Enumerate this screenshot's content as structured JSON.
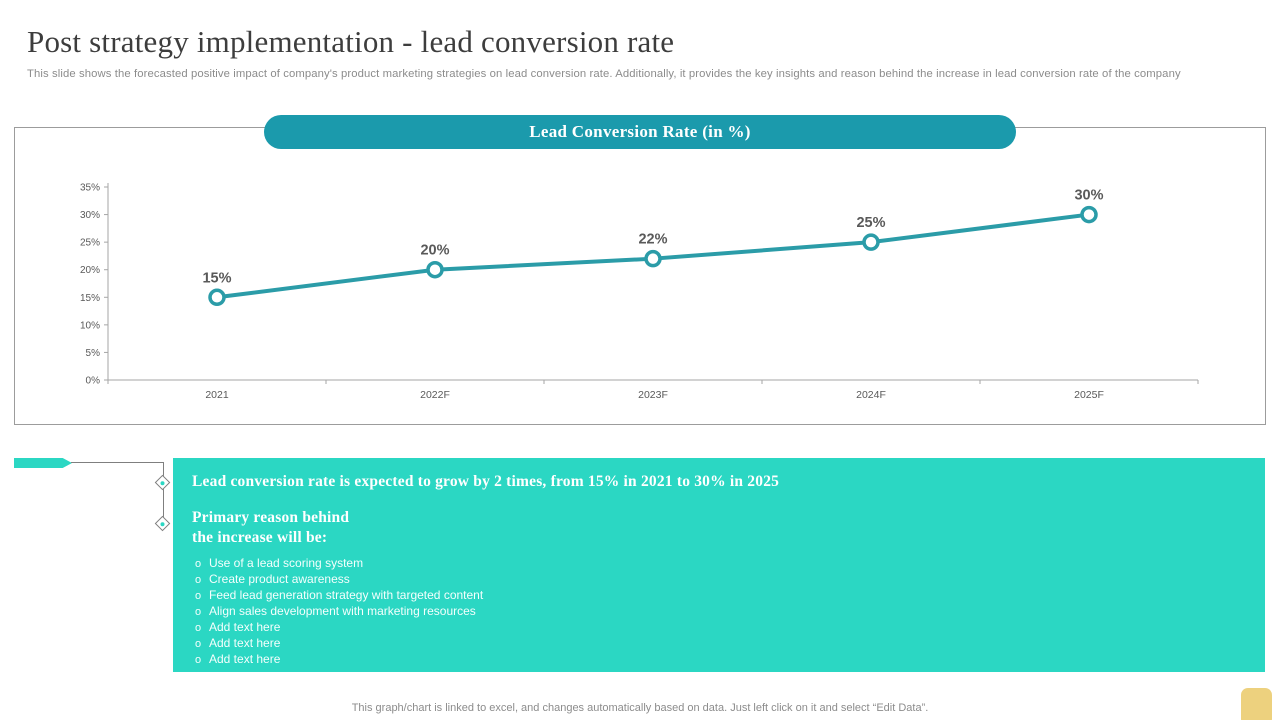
{
  "header": {
    "title": "Post strategy implementation - lead conversion rate",
    "subtitle": "This slide shows the forecasted positive impact of company's product marketing strategies on lead conversion rate. Additionally, it  provides the key  insights and reason behind the increase in lead conversion rate of the company"
  },
  "chart": {
    "header_label": "Lead Conversion Rate (in %)"
  },
  "chart_data": {
    "type": "line",
    "title": "Lead Conversion Rate (in %)",
    "categories": [
      "2021",
      "2022F",
      "2023F",
      "2024F",
      "2025F"
    ],
    "values": [
      15,
      20,
      22,
      25,
      30
    ],
    "data_labels": [
      "15%",
      "20%",
      "22%",
      "25%",
      "30%"
    ],
    "ylim": [
      0,
      35
    ],
    "ytick_step": 5,
    "ytick_labels": [
      "0%",
      "5%",
      "10%",
      "15%",
      "20%",
      "25%",
      "30%",
      "35%"
    ],
    "xlabel": "",
    "ylabel": "",
    "grid": false,
    "legend": false,
    "marker": "open-circle"
  },
  "insights": {
    "headline": "Lead conversion rate is expected to grow by 2 times, from 15% in 2021 to 30% in 2025",
    "primary_reason_line1": "Primary reason behind",
    "primary_reason_line2": "the increase will be:",
    "bullet_marker": "o",
    "bullets": [
      "Use of a lead scoring system",
      "Create  product  awareness",
      "Feed  lead  generation   strategy with  targeted  content",
      "Align  sales  development   with  marketing  resources",
      "Add text here",
      "Add text here",
      "Add text here"
    ]
  },
  "footer": {
    "note": "This graph/chart is linked to excel,  and changes automatically based on data. Just left click on it and select “Edit Data”."
  },
  "colors": {
    "pill_teal": "#1b9aac",
    "line_teal": "#2b9ca8",
    "turquoise": "#2bd7c3",
    "yellow": "#edd17e",
    "label_gray": "#595959",
    "axis_gray": "#a6a6a6"
  }
}
